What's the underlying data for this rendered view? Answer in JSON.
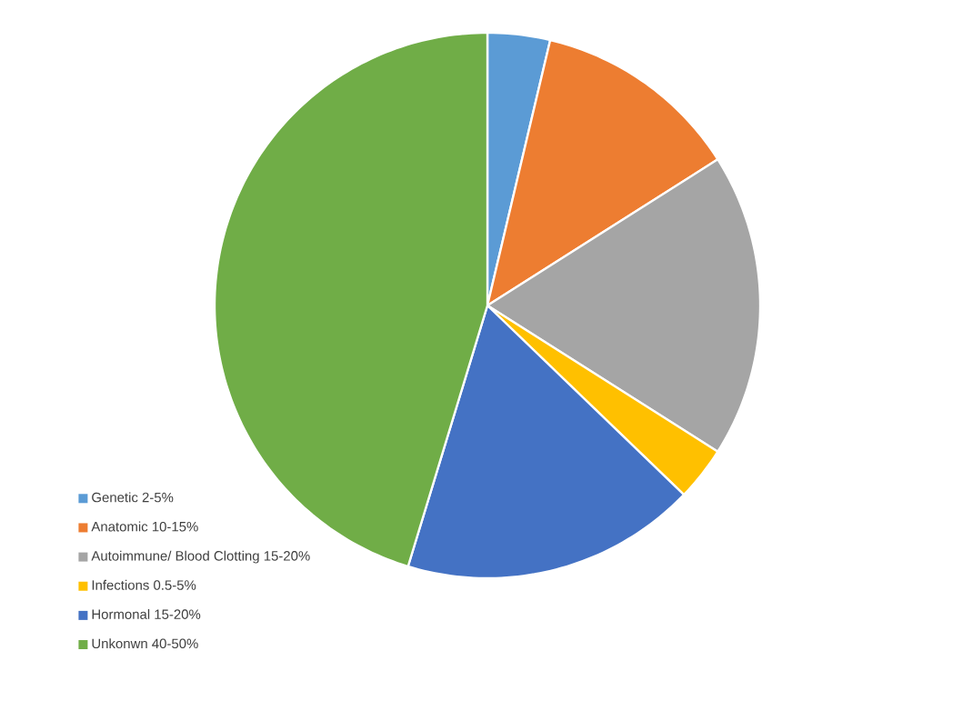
{
  "chart_data": {
    "type": "pie",
    "categories": [
      "Genetic  2-5%",
      "Anatomic 10-15%",
      "Autoimmune/ Blood Clotting 15-20%",
      "Infections 0.5-5%",
      "Hormonal 15-20%",
      "Unkonwn 40-50%"
    ],
    "values": [
      3.7,
      12.3,
      18,
      3.2,
      17.5,
      45.3
    ],
    "colors": [
      "#5b9bd5",
      "#ed7d31",
      "#a5a5a5",
      "#ffc000",
      "#4472c4",
      "#70ad47"
    ],
    "legend": "bottom left"
  }
}
